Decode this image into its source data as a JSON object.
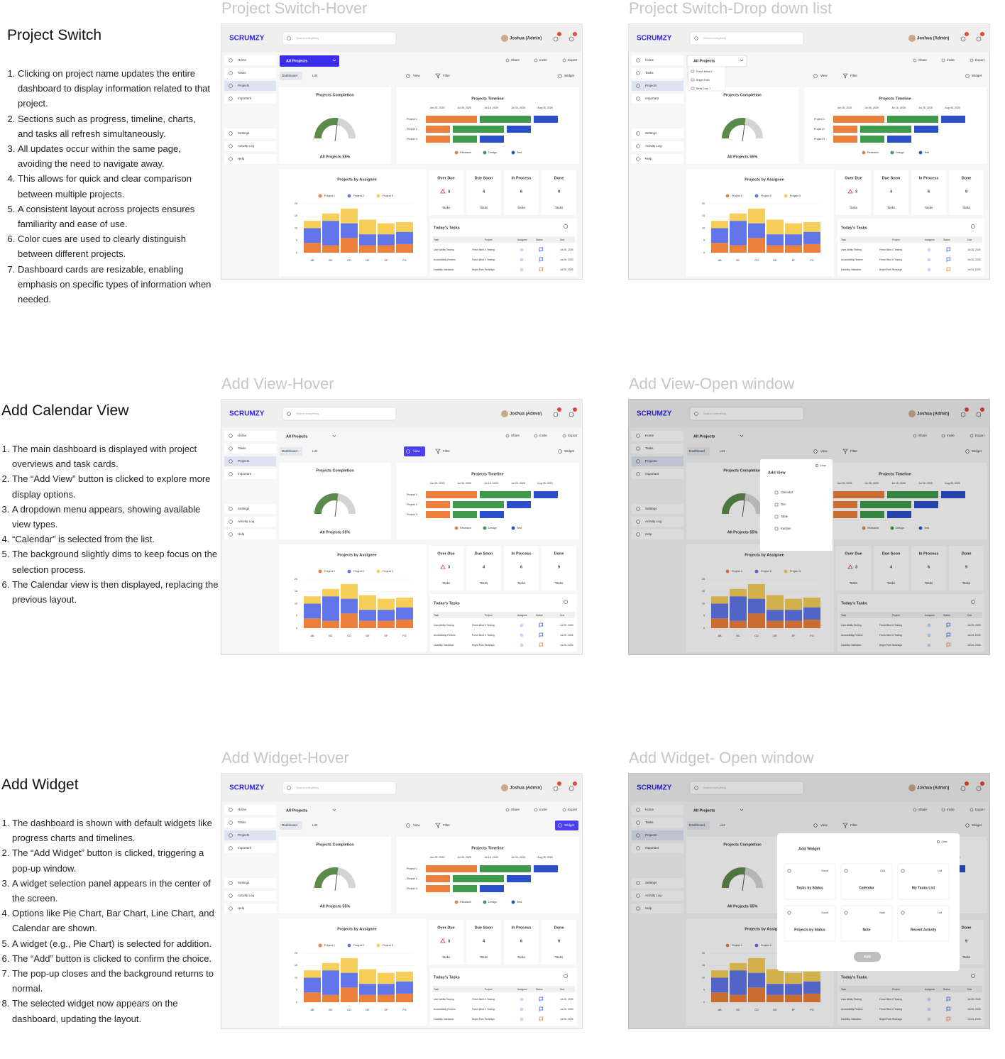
{
  "sections": [
    {
      "title": "Project Switch",
      "steps": [
        "Clicking on project name updates the entire dashboard to display information related to that project.",
        "Sections such as progress, timeline, charts, and tasks all refresh simultaneously.",
        "All updates occur within the same page, avoiding the need to navigate away.",
        "This allows for quick and clear comparison between multiple projects.",
        "A consistent layout across projects ensures familiarity and ease of use.",
        "Color cues are used to clearly distinguish between different projects.",
        "Dashboard cards are resizable, enabling emphasis on specific types of information when needed."
      ]
    },
    {
      "title": "Add Calendar View",
      "steps": [
        "The main dashboard is displayed with project overviews and task cards.",
        "The “Add View” button is clicked to explore more display options.",
        "A dropdown menu appears, showing available view types.",
        "“Calendar” is selected from the list.",
        "The background slightly dims to keep focus on the selection process.",
        "The Calendar view is then displayed, replacing the previous layout."
      ]
    },
    {
      "title": "Add Widget",
      "steps": [
        "The dashboard is shown with default widgets like progress charts and timelines.",
        "The “Add Widget” button is clicked, triggering a pop-up window.",
        "A widget selection panel appears in the center of the screen.",
        "Options like Pie Chart, Bar Chart, Line Chart, and Calendar are shown.",
        "A widget (e.g., Pie Chart) is selected for addition.",
        "The “Add” button is clicked to confirm the choice.",
        "The pop-up closes and the background returns to normal.",
        "The selected widget now appears on the dashboard, updating the layout."
      ]
    }
  ],
  "panels": [
    {
      "title": "Project Switch-Hover",
      "hover": "project"
    },
    {
      "title": "Project Switch-Drop down list",
      "dropdown": [
        "Fresh Mind X",
        "Bright Path",
        "Beta Core 7"
      ]
    },
    {
      "title": "Add View-Hover",
      "hover": "view"
    },
    {
      "title": "Add View-Open window",
      "dimmed": true,
      "popup": {
        "title": "Add View",
        "close": "Close",
        "options": [
          "Calendar",
          "Doc",
          "Table",
          "Kanban"
        ]
      }
    },
    {
      "title": "Add Widget-Hover",
      "hover": "widget"
    },
    {
      "title": "Add Widget- Open window",
      "dimmed": true,
      "popup": {
        "title": "Add Widget",
        "close": "Close",
        "tiles": [
          {
            "type": "Donut",
            "name": "Tasks by Status"
          },
          {
            "type": "Grid",
            "name": "Calendar"
          },
          {
            "type": "List",
            "name": "My Tasks List"
          },
          {
            "type": "Donut",
            "name": "Projects by Status"
          },
          {
            "type": "Note",
            "name": "Note"
          },
          {
            "type": "List",
            "name": "Recent Activity"
          }
        ],
        "button": "Add"
      }
    }
  ],
  "dashboard": {
    "brand": "SCRUMZY",
    "search": "Search everything",
    "user": "Joshua (Admin)",
    "nav_top": [
      "Home",
      "Tasks",
      "Projects",
      "Important"
    ],
    "nav_bottom": [
      "Settings",
      "Activity Log",
      "Help"
    ],
    "toolbar": {
      "project": "All Projects",
      "actions": [
        "Share",
        "Invite",
        "Export"
      ],
      "tabs": [
        "Dashboard",
        "List"
      ],
      "view": "View",
      "filter": "Filter",
      "widget": "Widget"
    },
    "completion": {
      "title": "Projects Completion",
      "value": 55,
      "label": "All Projects 55%"
    },
    "timeline": {
      "title": "Projects Timeline",
      "dates": [
        "Jun 25, 2025",
        "Jul 05, 2025",
        "Jul 15, 2025",
        "Jul 25, 2025",
        "Aug 05, 2025"
      ],
      "rows": [
        "Project 1",
        "Project 2",
        "Project 3"
      ],
      "series": [
        {
          "name": "Research",
          "color": "#ec7f3b",
          "start": [
            0,
            0,
            0
          ],
          "length": [
            2,
            1,
            1
          ]
        },
        {
          "name": "Design",
          "color": "#3f9a4c",
          "start": [
            2,
            1,
            1
          ],
          "length": [
            2,
            2,
            1
          ]
        },
        {
          "name": "Test",
          "color": "#2b4fc9",
          "start": [
            4,
            3,
            2
          ],
          "length": [
            1,
            1,
            1
          ]
        }
      ]
    },
    "assignee": {
      "title": "Projects by Assignee",
      "type": "bar",
      "stacked": true,
      "categories": [
        "AB",
        "BC",
        "CD",
        "DE",
        "EF",
        "FG"
      ],
      "ylim": [
        0,
        20
      ],
      "yticks": [
        0,
        5,
        10,
        15,
        20
      ],
      "series": [
        {
          "name": "Project 1",
          "color": "#ec7f3b",
          "values": [
            4,
            3,
            6,
            3,
            3,
            3.5
          ]
        },
        {
          "name": "Project 2",
          "color": "#6175e8",
          "values": [
            6,
            10,
            6,
            4.5,
            4.5,
            5
          ]
        },
        {
          "name": "Project 3",
          "color": "#f5cf5a",
          "values": [
            3,
            3,
            6,
            6,
            4.5,
            4
          ]
        }
      ]
    },
    "status": [
      {
        "title": "Over Due",
        "count": 3,
        "unit": "Tasks"
      },
      {
        "title": "Due Soon",
        "count": 4,
        "unit": "Tasks"
      },
      {
        "title": "In Process",
        "count": 6,
        "unit": "Tasks"
      },
      {
        "title": "Done",
        "count": 9,
        "unit": "Tasks"
      }
    ],
    "tasks": {
      "title": "Today's Tasks",
      "columns": [
        "Task",
        "Project",
        "Assignee",
        "Status",
        "Due"
      ],
      "rows": [
        {
          "task": "User Ability Testing",
          "project": "Fresh Mind X Testing",
          "due": "Jul 25, 2025",
          "flag_color": "#2b55d6"
        },
        {
          "task": "Accessibility Review",
          "project": "Fresh Mind X Testing",
          "due": "Jul 25, 2025",
          "flag_color": "#2b55d6"
        },
        {
          "task": "Usability Validation",
          "project": "Bright Path Redesign",
          "due": "Jul 25, 2025",
          "flag_color": "#ec7f3b"
        }
      ]
    }
  }
}
